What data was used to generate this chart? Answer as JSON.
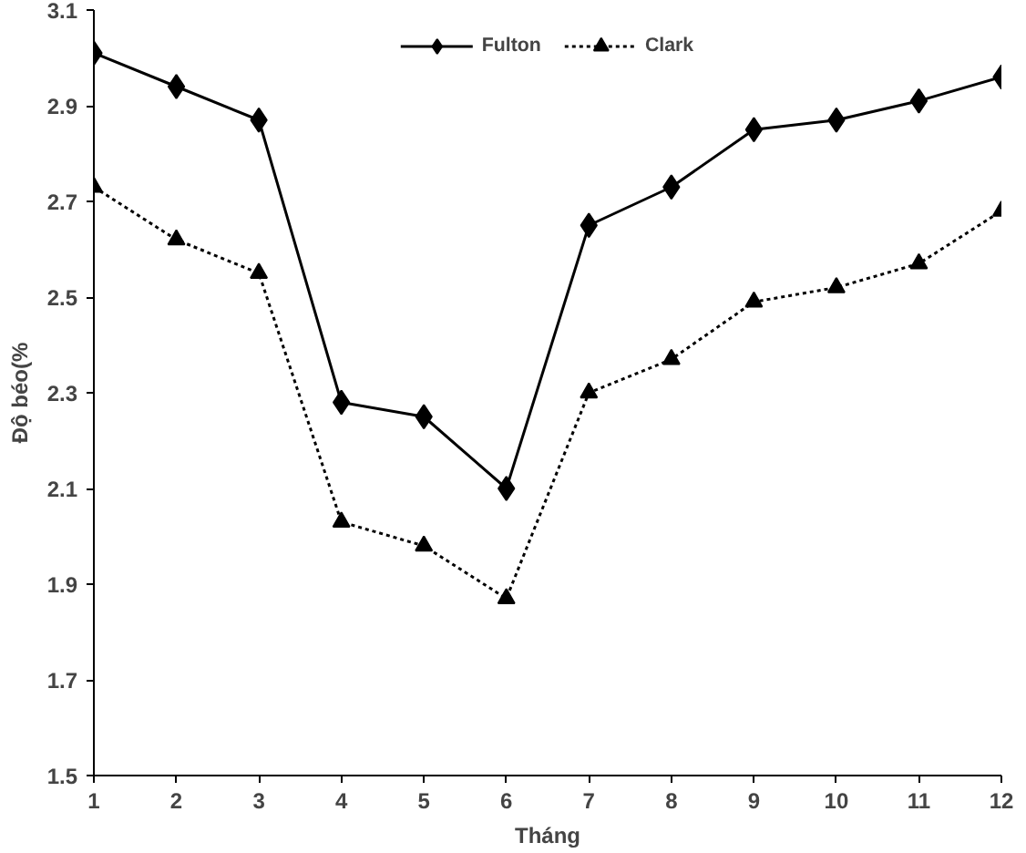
{
  "chart_data": {
    "type": "line",
    "xlabel": "Tháng",
    "ylabel": "Độ béo(%",
    "x": [
      1,
      2,
      3,
      4,
      5,
      6,
      7,
      8,
      9,
      10,
      11,
      12
    ],
    "series": [
      {
        "name": "Fulton",
        "color": "#000000",
        "marker": "diamond",
        "line_style": "solid",
        "values": [
          3.01,
          2.94,
          2.87,
          2.28,
          2.25,
          2.1,
          2.65,
          2.73,
          2.85,
          2.87,
          2.91,
          2.96
        ]
      },
      {
        "name": "Clark",
        "color": "#000000",
        "marker": "triangle",
        "line_style": "dotted",
        "values": [
          2.73,
          2.62,
          2.55,
          2.03,
          1.98,
          1.87,
          2.3,
          2.37,
          2.49,
          2.52,
          2.57,
          2.68
        ]
      }
    ],
    "xlim": [
      1,
      12
    ],
    "xticks": [
      1,
      2,
      3,
      4,
      5,
      6,
      7,
      8,
      9,
      10,
      11,
      12
    ],
    "ylim": [
      1.5,
      3.1
    ],
    "yticks": [
      1.5,
      1.7,
      1.9,
      2.1,
      2.3,
      2.5,
      2.7,
      2.9,
      3.1
    ],
    "grid": false,
    "legend": "top"
  }
}
